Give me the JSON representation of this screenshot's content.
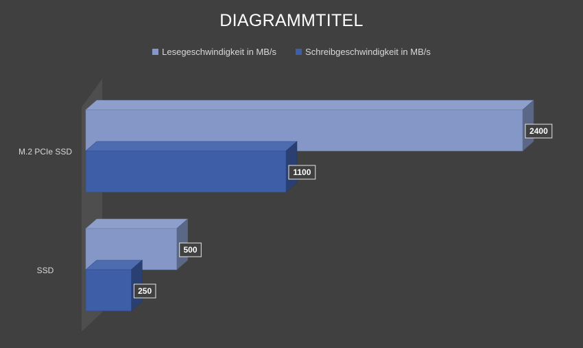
{
  "chart_data": {
    "type": "bar",
    "orientation": "horizontal",
    "style": "3d",
    "title": "DIAGRAMMTITEL",
    "categories": [
      "M.2 PCIe SSD",
      "SSD"
    ],
    "series": [
      {
        "name": "Lesegeschwindigkeit in MB/s",
        "values": [
          2400,
          500
        ],
        "color": "#8497c7"
      },
      {
        "name": "Schreibgeschwindigkeit in MB/s",
        "values": [
          1100,
          250
        ],
        "color": "#3e5ea8"
      }
    ],
    "xlim": [
      0,
      2400
    ],
    "legend_position": "top",
    "grid": false,
    "data_labels": true
  },
  "colors": {
    "background": "#404040",
    "title": "#ffffff",
    "text": "#d9d9d9",
    "wall": "#4e4e4e"
  }
}
